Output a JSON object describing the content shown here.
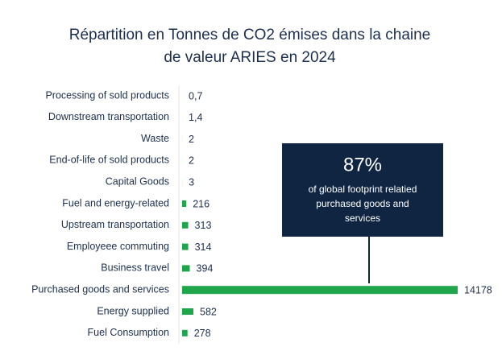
{
  "chart_data": {
    "type": "hbar",
    "title": "Répartition en Tonnes de CO2 émises dans la chaine de valeur ARIES en 2024",
    "categories": [
      "Processing of sold products",
      "Downstream transportation",
      "Waste",
      "End-of-life of sold products",
      "Capital Goods",
      "Fuel and energy-related",
      "Upstream transportation",
      "Employeee commuting",
      "Business travel",
      "Purchased goods and services",
      "Energy supplied",
      "Fuel Consumption"
    ],
    "values": [
      0.7,
      1.4,
      2,
      2,
      3,
      216,
      313,
      314,
      394,
      14178,
      582,
      278
    ],
    "value_labels": [
      "0,7",
      "1,4",
      "2",
      "2",
      "3",
      "216",
      "313",
      "314",
      "394",
      "14178",
      "582",
      "278"
    ],
    "color": "#1fa64a",
    "annotation": {
      "headline": "87%",
      "lines": [
        "of global footprint relatied",
        "purchased goods and",
        "services"
      ]
    }
  }
}
